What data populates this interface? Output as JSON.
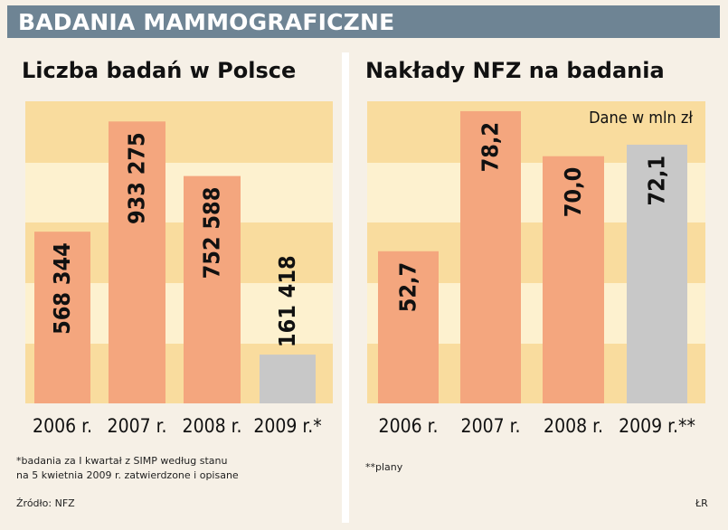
{
  "header": {
    "title": "BADANIA MAMMOGRAFICZNE"
  },
  "chart_data": [
    {
      "type": "bar",
      "title": "Liczba badań w Polsce",
      "categories": [
        "2006 r.",
        "2007 r.",
        "2008 r.",
        "2009 r.*"
      ],
      "values": [
        568344,
        933275,
        752588,
        161418
      ],
      "value_labels": [
        "568 344",
        "933 275",
        "752 588",
        "161 418"
      ],
      "bar_colors": [
        "#f4a67e",
        "#f4a67e",
        "#f4a67e",
        "#c8c8c8"
      ],
      "ylim": [
        0,
        1000000
      ],
      "grid": true
    },
    {
      "type": "bar",
      "title": "Nakłady NFZ na badania",
      "subtitle": "Dane w mln zł",
      "categories": [
        "2006 r.",
        "2007 r.",
        "2008 r.",
        "2009 r.**"
      ],
      "values": [
        52.7,
        78.2,
        70.0,
        72.1
      ],
      "value_labels": [
        "52,7",
        "78,2",
        "70,0",
        "72,1"
      ],
      "bar_colors": [
        "#f4a67e",
        "#f4a67e",
        "#f4a67e",
        "#c8c8c8"
      ],
      "ylim": [
        25,
        80
      ],
      "grid": true
    }
  ],
  "footnotes": {
    "left_line1": "*badania za I kwartał z SIMP według stanu",
    "left_line2": "na 5 kwietnia 2009 r. zatwierdzone i opisane",
    "right": "**plany",
    "source": "Źródło: NFZ",
    "credit": "ŁR"
  },
  "colors": {
    "stripe_light": "#fdf1cf",
    "stripe_dark": "#f9dc9e",
    "bar_orange": "#f4a67e",
    "bar_gray": "#c8c8c8"
  }
}
